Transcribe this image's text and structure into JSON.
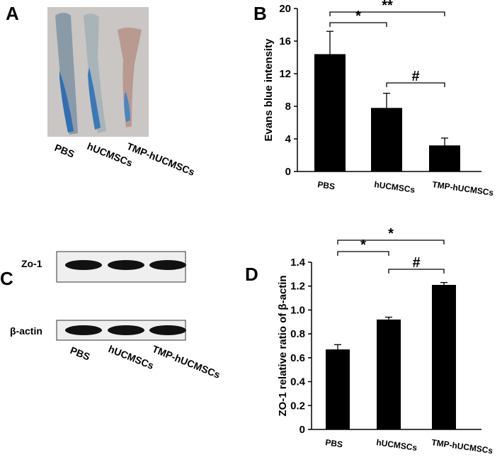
{
  "panels": {
    "a": {
      "label": "A",
      "lanes": [
        "PBS",
        "hUCMSCs",
        "TMP-hUCMSCs"
      ]
    },
    "c": {
      "label": "C",
      "rows": [
        "Zo-1",
        "β-actin"
      ],
      "lanes": [
        "PBS",
        "hUCMSCs",
        "TMP-hUCMSCs"
      ]
    }
  },
  "chart_data": [
    {
      "type": "bar",
      "panel_label": "B",
      "ylabel": "Evans blue intensity",
      "categories": [
        "PBS",
        "hUCMSCs",
        "TMP-hUCMSCs"
      ],
      "values": [
        14.4,
        7.8,
        3.2
      ],
      "errors": [
        2.8,
        1.8,
        0.9
      ],
      "color": "#000000",
      "ylim": [
        0,
        20
      ],
      "yticks": [
        0,
        4,
        8,
        12,
        16,
        20
      ],
      "annotations": [
        {
          "text": "*",
          "between": [
            0,
            1
          ]
        },
        {
          "text": "**",
          "between": [
            0,
            2
          ]
        },
        {
          "text": "#",
          "between": [
            1,
            2
          ]
        }
      ]
    },
    {
      "type": "bar",
      "panel_label": "D",
      "ylabel": "ZO-1 relative ratio of β-actin",
      "categories": [
        "PBS",
        "hUCMSCs",
        "TMP-hUCMSCs"
      ],
      "values": [
        0.67,
        0.92,
        1.21
      ],
      "errors": [
        0.04,
        0.02,
        0.02
      ],
      "color": "#000000",
      "ylim": [
        0,
        1.4
      ],
      "yticks": [
        0,
        0.2,
        0.4,
        0.6,
        0.8,
        {
          "value": 1,
          "label": "1.0"
        },
        1.2,
        1.4
      ],
      "annotations": [
        {
          "text": "*",
          "between": [
            0,
            1
          ]
        },
        {
          "text": "*",
          "between": [
            0,
            2
          ]
        },
        {
          "text": "#",
          "between": [
            1,
            2
          ]
        }
      ]
    }
  ]
}
